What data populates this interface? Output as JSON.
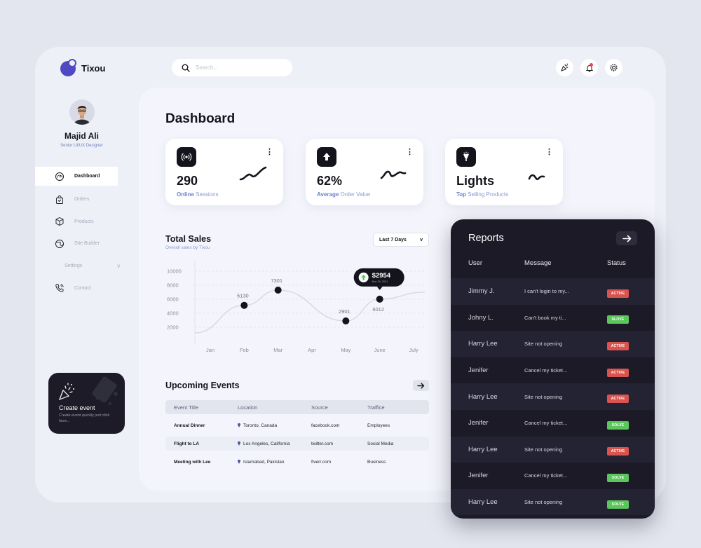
{
  "app": {
    "logo_text": "Tixou",
    "brand_color": "#4f4ac4"
  },
  "search": {
    "placeholder": "Search..."
  },
  "top_icons": [
    "party-popper-icon",
    "bell-icon",
    "gear-icon"
  ],
  "profile": {
    "name": "Majid Ali",
    "role": "Senior UI/UX Designer"
  },
  "sidebar": {
    "items": [
      {
        "label": "Dashboard",
        "icon": "dashboard-gauge-icon",
        "active": true
      },
      {
        "label": "Orders",
        "icon": "shopping-bag-icon"
      },
      {
        "label": "Products",
        "icon": "boxes-icon"
      },
      {
        "label": "Site Builder",
        "icon": "globe-icon"
      },
      {
        "label": "Settings",
        "icon": "gear-icon",
        "chevron": "v"
      },
      {
        "label": "Contact",
        "icon": "phone-icon"
      }
    ]
  },
  "create_event": {
    "title": "Create event",
    "subtitle": "Create event quickly just click here..."
  },
  "dashboard": {
    "title": "Dashboard"
  },
  "stats": [
    {
      "value": "290",
      "label_strong": "Online",
      "label_rest": " Sessions",
      "icon": "broadcast-icon",
      "menu": "⋮"
    },
    {
      "value": "62%",
      "label_strong": "Average",
      "label_rest": " Order Value",
      "icon": "upload-arrow-icon",
      "menu": "⋮"
    },
    {
      "value": "Lights",
      "label_strong": "Top",
      "label_rest": " Selling Products",
      "icon": "lamp-icon",
      "menu": "⋮"
    }
  ],
  "sales": {
    "title": "Total Sales",
    "subtitle": "Overall sales by Tixou",
    "range": "Last 7 Days",
    "range_chevron": "v",
    "tooltip": {
      "value": "$2954",
      "date": "Nov 29, 2021"
    }
  },
  "chart_data": {
    "type": "line",
    "categories": [
      "Jan",
      "Feb",
      "Mar",
      "Apr",
      "May",
      "June",
      "July"
    ],
    "y_ticks": [
      10000,
      8000,
      6000,
      4000,
      2000
    ],
    "ylim": [
      0,
      11000
    ],
    "grid": true,
    "series": [
      {
        "points": [
          {
            "x": "Feb",
            "value": 5130,
            "label": "5130"
          },
          {
            "x": "Mar",
            "value": 7301,
            "label": "7301"
          },
          {
            "x": "May",
            "value": 2901,
            "label": "2901"
          },
          {
            "x": "June",
            "value": 6012,
            "label": "6012"
          }
        ]
      }
    ]
  },
  "events": {
    "title": "Upcoming Events",
    "columns": [
      "Event Title",
      "Location",
      "Source",
      "Traffice"
    ],
    "rows": [
      {
        "title": "Annual Dinner",
        "location": "Toronto, Canada",
        "source": "facebook.com",
        "traffic": "Employees"
      },
      {
        "title": "Flight to LA",
        "location": "Los Angeles, California",
        "source": "twitter.com",
        "traffic": "Social Media"
      },
      {
        "title": "Meeting with Lee",
        "location": "Islamabad, Pakistan",
        "source": "fiverr.com",
        "traffic": "Business"
      }
    ]
  },
  "reports": {
    "title": "Reports",
    "columns": [
      "User",
      "Message",
      "Status"
    ],
    "rows": [
      {
        "user": "Jimmy J.",
        "message": "I can't login to my...",
        "status": "ACTIVE"
      },
      {
        "user": "Johny L.",
        "message": "Can't book my ti...",
        "status": "SLOVE"
      },
      {
        "user": "Harry Lee",
        "message": "Site not opening",
        "status": "ACTIVE"
      },
      {
        "user": "Jenifer",
        "message": "Cancel my ticket...",
        "status": "ACTIVE"
      },
      {
        "user": "Harry Lee",
        "message": "Site not opening",
        "status": "ACTIVE"
      },
      {
        "user": "Jenifer",
        "message": "Cancel my ticket...",
        "status": "SOLVE"
      },
      {
        "user": "Harry Lee",
        "message": "Site not opening",
        "status": "ACTIVE"
      },
      {
        "user": "Jenifer",
        "message": "Cancel my ticket...",
        "status": "SOLVE"
      },
      {
        "user": "Harry Lee",
        "message": "Site not opening",
        "status": "SOLVE"
      }
    ],
    "status_colors": {
      "active": "#d9534f",
      "solve": "#5ac65b"
    }
  }
}
